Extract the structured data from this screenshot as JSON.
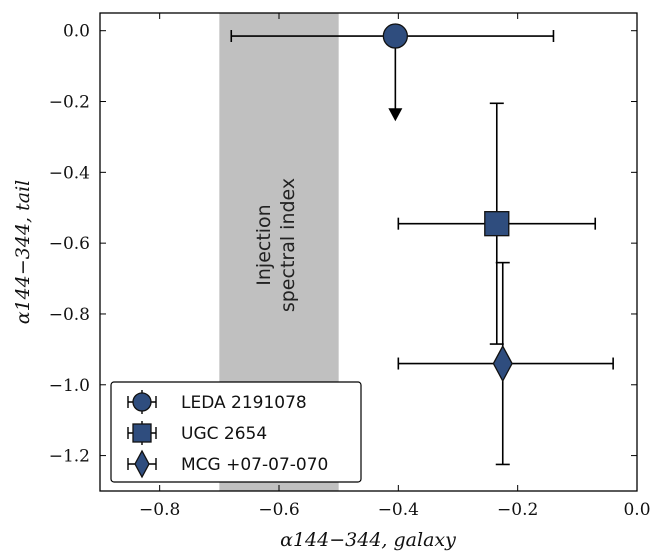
{
  "chart_data": {
    "type": "scatter",
    "xlabel": "α144−344, galaxy",
    "ylabel": "α144−344, tail",
    "xlim": [
      -0.9,
      0.0
    ],
    "ylim": [
      -1.3,
      0.05
    ],
    "xticks": [
      -0.8,
      -0.6,
      -0.4,
      -0.2,
      0.0
    ],
    "xtick_labels": [
      "−0.8",
      "−0.6",
      "−0.4",
      "−0.2",
      "0.0"
    ],
    "yticks": [
      0.0,
      -0.2,
      -0.4,
      -0.6,
      -0.8,
      -1.0,
      -1.2
    ],
    "ytick_labels": [
      "0.0",
      "−0.2",
      "−0.4",
      "−0.6",
      "−0.8",
      "−1.0",
      "−1.2"
    ],
    "grid": false,
    "marker_color": "#2f4d7e",
    "band": {
      "x_range": [
        -0.7,
        -0.5
      ],
      "label_line1": "Injection",
      "label_line2": "spectral index",
      "color": "#c0c0c0"
    },
    "legend_position": "lower-left",
    "series": [
      {
        "name": "LEDA 2191078",
        "marker": "circle",
        "x": -0.405,
        "y": -0.015,
        "x_err": [
          0.275,
          0.265
        ],
        "y_upper_limit": true,
        "limit_to": -0.25
      },
      {
        "name": "UGC 2654",
        "marker": "square",
        "x": -0.235,
        "y": -0.545,
        "x_err": [
          0.165,
          0.165
        ],
        "y_err": [
          0.34,
          0.34
        ]
      },
      {
        "name": "MCG +07-07-070",
        "marker": "diamond",
        "x": -0.225,
        "y": -0.94,
        "x_err": [
          0.175,
          0.185
        ],
        "y_err": [
          0.285,
          0.285
        ]
      }
    ]
  }
}
